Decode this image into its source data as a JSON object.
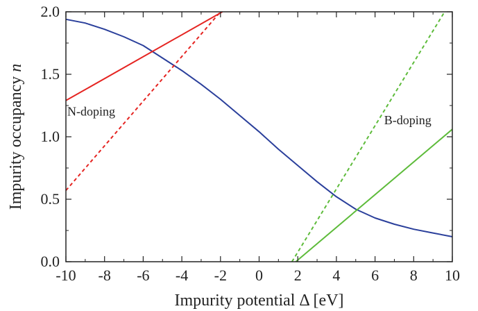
{
  "chart_data": {
    "type": "line",
    "xlabel": "Impurity potential Δ [eV]",
    "ylabel_prefix": "Impurity occupancy ",
    "ylabel_var": "n",
    "xlim": [
      -10,
      10
    ],
    "ylim": [
      0,
      2
    ],
    "x_ticks": [
      -10,
      -8,
      -6,
      -4,
      -2,
      0,
      2,
      4,
      6,
      8,
      10
    ],
    "x_tick_labels": [
      "-10",
      "-8",
      "-6",
      "-4",
      "-2",
      "0",
      "2",
      "4",
      "6",
      "8",
      "10"
    ],
    "y_ticks": [
      0,
      0.5,
      1,
      1.5,
      2
    ],
    "y_tick_labels": [
      "0.0",
      "0.5",
      "1.0",
      "1.5",
      "2.0"
    ],
    "grid": false,
    "annotations": [
      {
        "text": "N-doping",
        "x": -10,
        "y": 1.17
      },
      {
        "text": "B-doping",
        "x": 6.4,
        "y": 1.1
      }
    ],
    "series": [
      {
        "style": "solid",
        "color": "#2a3f9b",
        "x": [
          -10,
          -9,
          -8,
          -7,
          -6,
          -5,
          -4,
          -3,
          -2,
          -1,
          0,
          1,
          2,
          3,
          4,
          5,
          6,
          7,
          8,
          9,
          10
        ],
        "y": [
          1.94,
          1.91,
          1.86,
          1.8,
          1.73,
          1.63,
          1.53,
          1.42,
          1.3,
          1.17,
          1.04,
          0.9,
          0.77,
          0.64,
          0.52,
          0.42,
          0.35,
          0.3,
          0.26,
          0.23,
          0.2
        ]
      },
      {
        "style": "solid",
        "color": "#e52421",
        "x": [
          -10,
          -1.9
        ],
        "y": [
          1.29,
          2.0
        ]
      },
      {
        "style": "dashed",
        "color": "#e52421",
        "x": [
          -10,
          -2.0
        ],
        "y": [
          0.57,
          2.0
        ]
      },
      {
        "style": "dashed",
        "color": "#5dbb3a",
        "x": [
          1.7,
          9.6
        ],
        "y": [
          0.0,
          2.0
        ]
      },
      {
        "style": "solid",
        "color": "#5dbb3a",
        "x": [
          1.9,
          10
        ],
        "y": [
          0.0,
          1.06
        ]
      }
    ]
  }
}
